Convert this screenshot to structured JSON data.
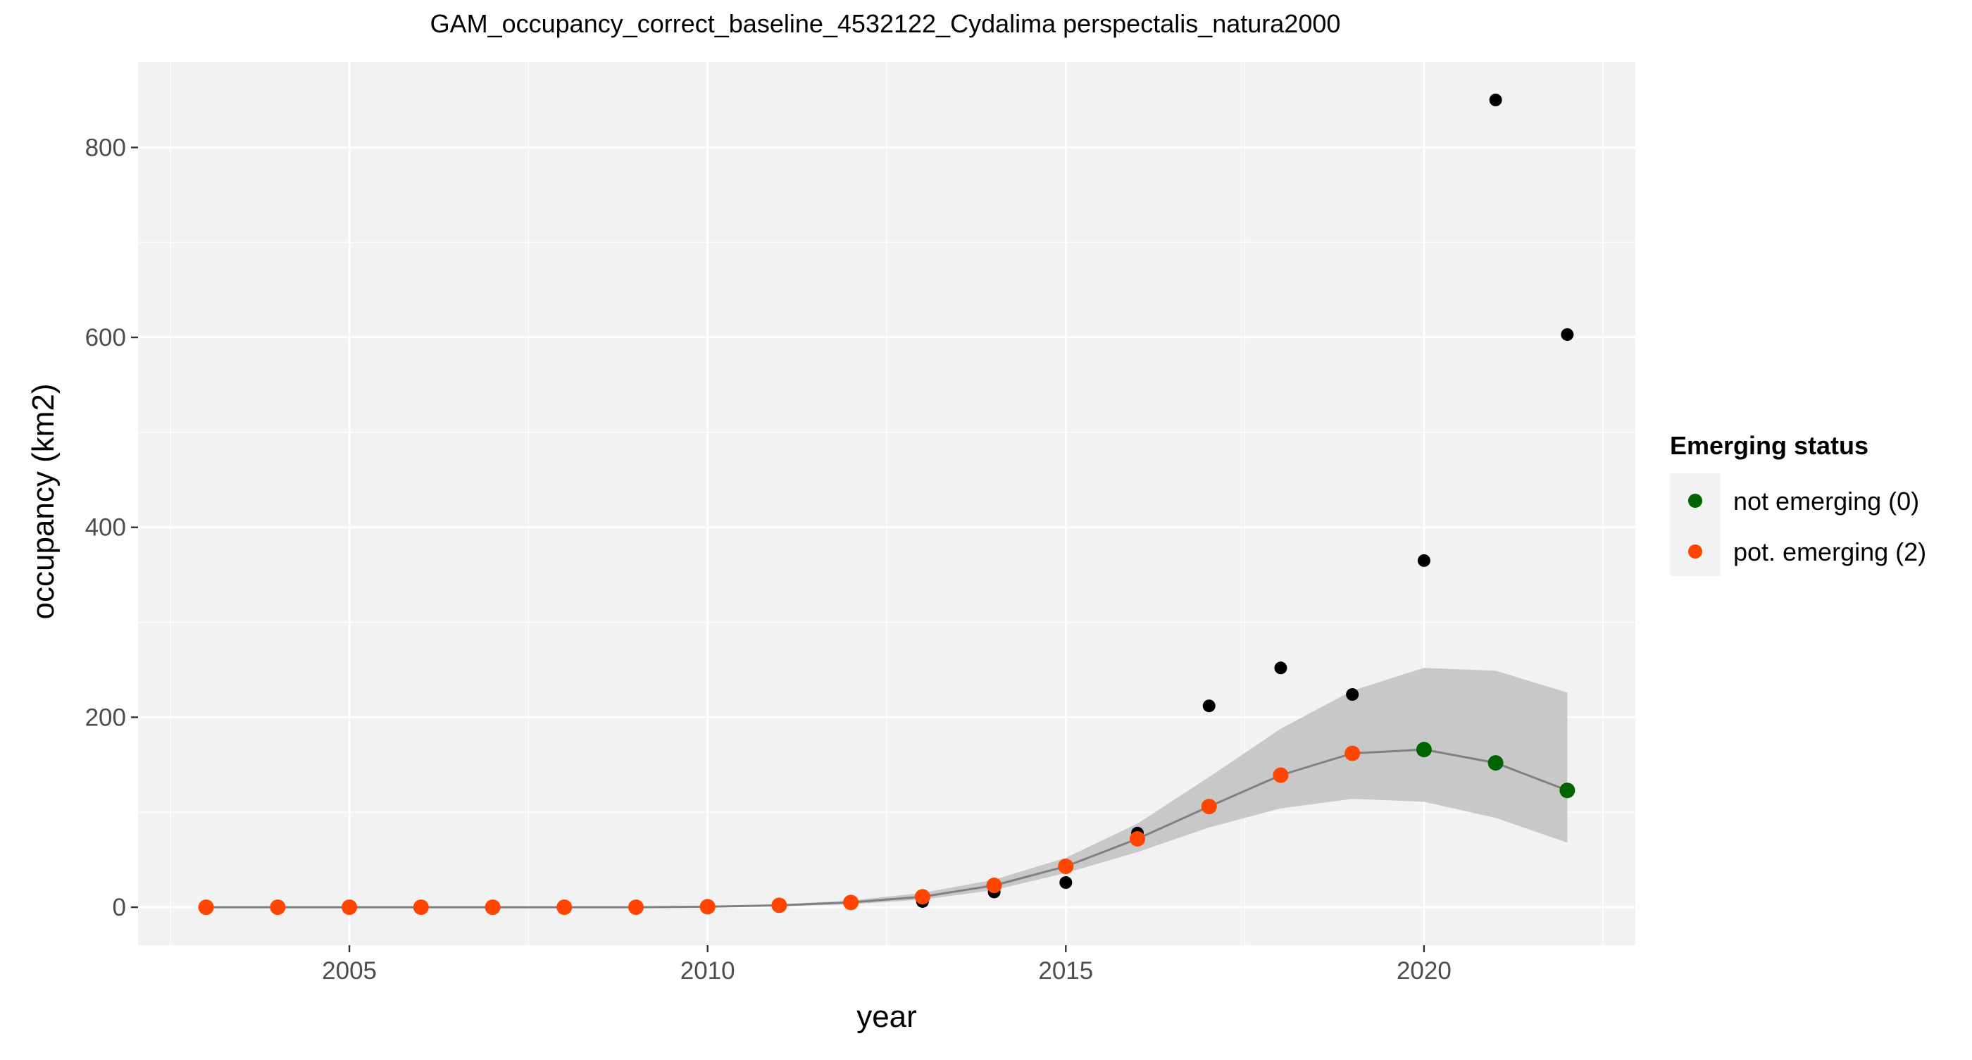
{
  "chart_data": {
    "type": "scatter",
    "title": "GAM_occupancy_correct_baseline_4532122_Cydalima perspectalis_natura2000",
    "xlabel": "year",
    "ylabel": "occupancy (km2)",
    "xlim": [
      2002.05,
      2022.95
    ],
    "ylim": [
      -40,
      890
    ],
    "x_ticks": [
      2005,
      2010,
      2015,
      2020
    ],
    "y_ticks": [
      0,
      200,
      400,
      600,
      800
    ],
    "grid": true,
    "legend": {
      "title": "Emerging status",
      "position": "right",
      "entries": [
        {
          "label": "not emerging (0)",
          "color": "#006400"
        },
        {
          "label": "pot. emerging (2)",
          "color": "#FF4500"
        }
      ]
    },
    "observed": {
      "color": "#000000",
      "x": [
        2003,
        2004,
        2005,
        2006,
        2007,
        2008,
        2009,
        2010,
        2011,
        2012,
        2013,
        2014,
        2015,
        2016,
        2017,
        2018,
        2019,
        2020,
        2021,
        2022
      ],
      "y": [
        0,
        0,
        0,
        0,
        0,
        0,
        0,
        0,
        1,
        4,
        6,
        16,
        26,
        78,
        212,
        252,
        224,
        365,
        850,
        603
      ]
    },
    "fitted": {
      "line_color": "#808080",
      "band_color": "#c8c8c8",
      "x": [
        2003,
        2004,
        2005,
        2006,
        2007,
        2008,
        2009,
        2010,
        2011,
        2012,
        2013,
        2014,
        2015,
        2016,
        2017,
        2018,
        2019,
        2020,
        2021,
        2022
      ],
      "y": [
        0,
        0,
        0,
        0,
        0,
        0,
        0,
        0.5,
        2,
        5,
        11,
        23,
        43,
        72,
        106,
        139,
        162,
        166,
        152,
        123
      ],
      "lower": [
        0,
        0,
        0,
        0,
        0,
        0,
        0,
        0.3,
        1,
        3,
        8,
        18,
        36,
        58,
        84,
        104,
        114,
        111,
        94,
        68
      ],
      "upper": [
        0,
        0,
        0,
        0,
        0,
        0,
        0,
        0.8,
        3,
        7,
        15,
        29,
        52,
        88,
        137,
        188,
        228,
        252,
        249,
        226
      ],
      "status": [
        "pot. emerging (2)",
        "pot. emerging (2)",
        "pot. emerging (2)",
        "pot. emerging (2)",
        "pot. emerging (2)",
        "pot. emerging (2)",
        "pot. emerging (2)",
        "pot. emerging (2)",
        "pot. emerging (2)",
        "pot. emerging (2)",
        "pot. emerging (2)",
        "pot. emerging (2)",
        "pot. emerging (2)",
        "pot. emerging (2)",
        "pot. emerging (2)",
        "pot. emerging (2)",
        "pot. emerging (2)",
        "not emerging (0)",
        "not emerging (0)",
        "not emerging (0)"
      ]
    }
  }
}
